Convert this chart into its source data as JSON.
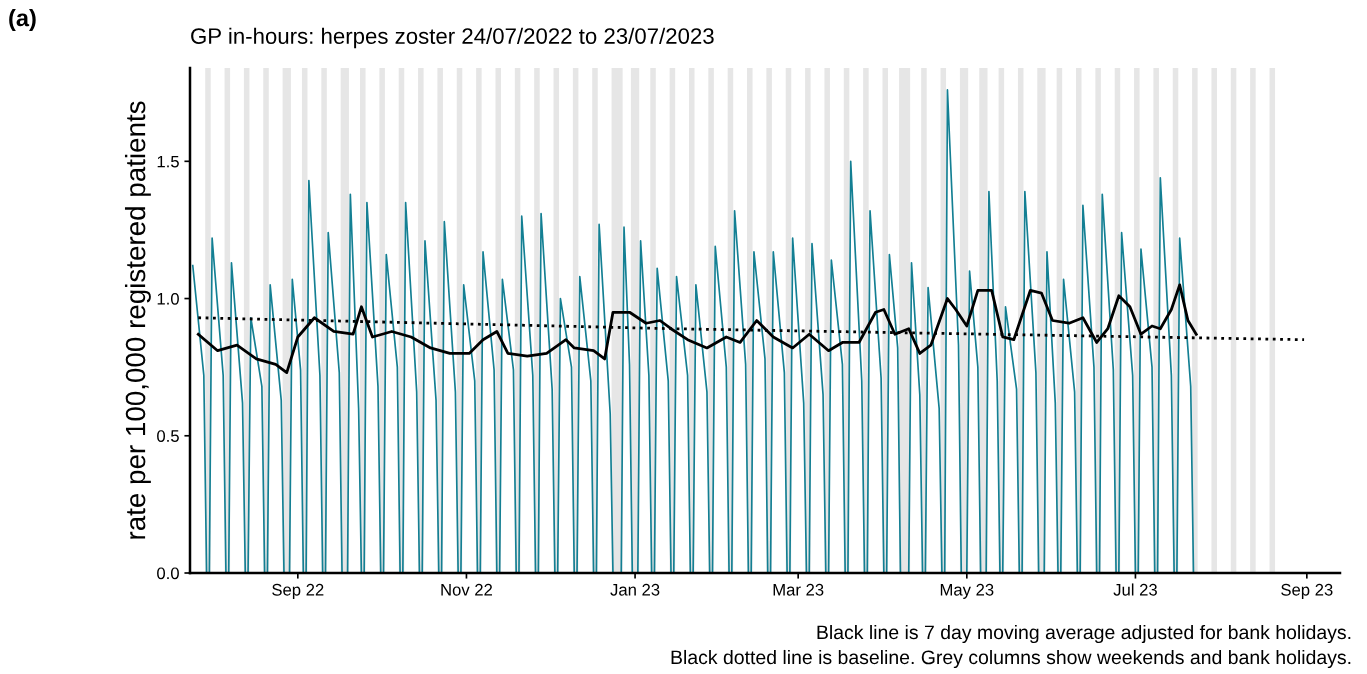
{
  "chart_data": {
    "type": "line",
    "title": "GP in-hours: herpes zoster 24/07/2022 to 23/07/2023",
    "ylabel": "rate per 100,000 registered patients",
    "annotations": [
      "(a)",
      "Black line is 7 day moving average adjusted for bank holidays.",
      "Black dotted line is baseline. Grey columns show weekends and bank holidays."
    ],
    "xlim": [
      "2022-07-24",
      "2023-09-13"
    ],
    "xticks": [
      {
        "value": "2022-09-01",
        "label": "Sep 22"
      },
      {
        "value": "2022-11-01",
        "label": "Nov 22"
      },
      {
        "value": "2023-01-01",
        "label": "Jan 23"
      },
      {
        "value": "2023-03-01",
        "label": "Mar 23"
      },
      {
        "value": "2023-05-01",
        "label": "May 23"
      },
      {
        "value": "2023-07-01",
        "label": "Jul 23"
      },
      {
        "value": "2023-09-01",
        "label": "Sep 23"
      }
    ],
    "ylim": [
      0,
      1.84
    ],
    "yticks": [
      {
        "value": 0,
        "label": "0.0"
      },
      {
        "value": 0.5,
        "label": "0.5"
      },
      {
        "value": 1.0,
        "label": "1.0"
      },
      {
        "value": 1.5,
        "label": "1.5"
      }
    ],
    "grid": false,
    "marker": "none",
    "series": [
      {
        "color": "#137f93",
        "line_style": "solid",
        "x": [
          "2022-07-25",
          "2022-07-29",
          "2022-07-30",
          "2022-07-31",
          "2022-08-01",
          "2022-08-05",
          "2022-08-06",
          "2022-08-07",
          "2022-08-08",
          "2022-08-12",
          "2022-08-13",
          "2022-08-14",
          "2022-08-15",
          "2022-08-19",
          "2022-08-20",
          "2022-08-21",
          "2022-08-22",
          "2022-08-26",
          "2022-08-27",
          "2022-08-28",
          "2022-08-29",
          "2022-08-30",
          "2022-09-02",
          "2022-09-03",
          "2022-09-04",
          "2022-09-05",
          "2022-09-09",
          "2022-09-10",
          "2022-09-11",
          "2022-09-12",
          "2022-09-16",
          "2022-09-17",
          "2022-09-18",
          "2022-09-19",
          "2022-09-20",
          "2022-09-23",
          "2022-09-24",
          "2022-09-25",
          "2022-09-26",
          "2022-09-30",
          "2022-10-01",
          "2022-10-02",
          "2022-10-03",
          "2022-10-07",
          "2022-10-08",
          "2022-10-09",
          "2022-10-10",
          "2022-10-14",
          "2022-10-15",
          "2022-10-16",
          "2022-10-17",
          "2022-10-21",
          "2022-10-22",
          "2022-10-23",
          "2022-10-24",
          "2022-10-28",
          "2022-10-29",
          "2022-10-30",
          "2022-10-31",
          "2022-11-04",
          "2022-11-05",
          "2022-11-06",
          "2022-11-07",
          "2022-11-11",
          "2022-11-12",
          "2022-11-13",
          "2022-11-14",
          "2022-11-18",
          "2022-11-19",
          "2022-11-20",
          "2022-11-21",
          "2022-11-25",
          "2022-11-26",
          "2022-11-27",
          "2022-11-28",
          "2022-12-02",
          "2022-12-03",
          "2022-12-04",
          "2022-12-05",
          "2022-12-09",
          "2022-12-10",
          "2022-12-11",
          "2022-12-12",
          "2022-12-16",
          "2022-12-17",
          "2022-12-18",
          "2022-12-19",
          "2022-12-23",
          "2022-12-24",
          "2022-12-25",
          "2022-12-26",
          "2022-12-27",
          "2022-12-28",
          "2022-12-30",
          "2022-12-31",
          "2023-01-01",
          "2023-01-02",
          "2023-01-03",
          "2023-01-06",
          "2023-01-07",
          "2023-01-08",
          "2023-01-09",
          "2023-01-13",
          "2023-01-14",
          "2023-01-15",
          "2023-01-16",
          "2023-01-20",
          "2023-01-21",
          "2023-01-22",
          "2023-01-23",
          "2023-01-27",
          "2023-01-28",
          "2023-01-29",
          "2023-01-30",
          "2023-02-03",
          "2023-02-04",
          "2023-02-05",
          "2023-02-06",
          "2023-02-10",
          "2023-02-11",
          "2023-02-12",
          "2023-02-13",
          "2023-02-17",
          "2023-02-18",
          "2023-02-19",
          "2023-02-20",
          "2023-02-24",
          "2023-02-25",
          "2023-02-26",
          "2023-02-27",
          "2023-03-03",
          "2023-03-04",
          "2023-03-05",
          "2023-03-06",
          "2023-03-10",
          "2023-03-11",
          "2023-03-12",
          "2023-03-13",
          "2023-03-17",
          "2023-03-18",
          "2023-03-19",
          "2023-03-20",
          "2023-03-24",
          "2023-03-25",
          "2023-03-26",
          "2023-03-27",
          "2023-03-31",
          "2023-04-01",
          "2023-04-02",
          "2023-04-03",
          "2023-04-06",
          "2023-04-07",
          "2023-04-08",
          "2023-04-09",
          "2023-04-10",
          "2023-04-11",
          "2023-04-14",
          "2023-04-15",
          "2023-04-16",
          "2023-04-17",
          "2023-04-21",
          "2023-04-22",
          "2023-04-23",
          "2023-04-24",
          "2023-04-28",
          "2023-04-29",
          "2023-04-30",
          "2023-05-01",
          "2023-05-02",
          "2023-05-05",
          "2023-05-06",
          "2023-05-07",
          "2023-05-08",
          "2023-05-09",
          "2023-05-12",
          "2023-05-13",
          "2023-05-14",
          "2023-05-15",
          "2023-05-19",
          "2023-05-20",
          "2023-05-21",
          "2023-05-22",
          "2023-05-26",
          "2023-05-27",
          "2023-05-28",
          "2023-05-29",
          "2023-05-30",
          "2023-06-02",
          "2023-06-03",
          "2023-06-04",
          "2023-06-05",
          "2023-06-09",
          "2023-06-10",
          "2023-06-11",
          "2023-06-12",
          "2023-06-16",
          "2023-06-17",
          "2023-06-18",
          "2023-06-19",
          "2023-06-23",
          "2023-06-24",
          "2023-06-25",
          "2023-06-26",
          "2023-06-30",
          "2023-07-01",
          "2023-07-02",
          "2023-07-03",
          "2023-07-07",
          "2023-07-08",
          "2023-07-09",
          "2023-07-10",
          "2023-07-14",
          "2023-07-15",
          "2023-07-16",
          "2023-07-17",
          "2023-07-21",
          "2023-07-22",
          "2023-07-23"
        ],
        "values": [
          1.12,
          0.72,
          0,
          0,
          1.22,
          0.72,
          0,
          0,
          1.13,
          0.62,
          0,
          0,
          0.93,
          0.68,
          0,
          0,
          1.05,
          0.63,
          0,
          0,
          0,
          1.07,
          0.74,
          0,
          0,
          1.43,
          0.72,
          0,
          0,
          1.24,
          0.73,
          0,
          0,
          0,
          1.38,
          0.6,
          0,
          0,
          1.35,
          0.68,
          0,
          0,
          1.16,
          0.75,
          0,
          0,
          1.35,
          0.66,
          0,
          0,
          1.21,
          0.63,
          0,
          0,
          1.28,
          0.66,
          0,
          0,
          1.05,
          0.7,
          0,
          0,
          1.17,
          0.74,
          0,
          0,
          1.07,
          0.74,
          0,
          0,
          1.3,
          0.72,
          0,
          0,
          1.31,
          0.67,
          0,
          0,
          1.0,
          0.75,
          0,
          0,
          1.08,
          0.7,
          0,
          0,
          1.27,
          0.58,
          0,
          0,
          0,
          0,
          1.26,
          0.76,
          0,
          0,
          0,
          1.21,
          0.72,
          0,
          0,
          1.11,
          0.7,
          0,
          0,
          1.08,
          0.72,
          0,
          0,
          1.05,
          0.66,
          0,
          0,
          1.19,
          0.75,
          0,
          0,
          1.32,
          0.76,
          0,
          0,
          1.17,
          0.78,
          0,
          0,
          1.17,
          0.73,
          0,
          0,
          1.22,
          0.62,
          0,
          0,
          1.2,
          0.65,
          0,
          0,
          1.14,
          0.76,
          0,
          0,
          1.5,
          0.7,
          0,
          0,
          1.32,
          0.71,
          0,
          0,
          1.16,
          0.82,
          0,
          0,
          0,
          0,
          1.13,
          0.65,
          0,
          0,
          1.04,
          0.6,
          0,
          0,
          1.76,
          0.83,
          0,
          0,
          0,
          1.1,
          0.75,
          0,
          0,
          0,
          1.39,
          0.7,
          0,
          0,
          0.97,
          0.67,
          0,
          0,
          1.39,
          0.73,
          0,
          0,
          0,
          1.17,
          0.62,
          0,
          0,
          1.07,
          0.66,
          0,
          0,
          1.34,
          0.75,
          0,
          0,
          1.38,
          0.74,
          0,
          0,
          1.24,
          0.72,
          0,
          0,
          1.18,
          0.75,
          0,
          0,
          1.44,
          0.72,
          0,
          0,
          1.22,
          0.68,
          0,
          0
        ]
      },
      {
        "color": "#000000",
        "line_style": "solid",
        "x": [
          "2022-07-27",
          "2022-08-03",
          "2022-08-10",
          "2022-08-17",
          "2022-08-24",
          "2022-08-28",
          "2022-09-01",
          "2022-09-07",
          "2022-09-14",
          "2022-09-21",
          "2022-09-24",
          "2022-09-28",
          "2022-10-05",
          "2022-10-12",
          "2022-10-19",
          "2022-10-26",
          "2022-11-02",
          "2022-11-07",
          "2022-11-12",
          "2022-11-16",
          "2022-11-23",
          "2022-11-30",
          "2022-12-07",
          "2022-12-10",
          "2022-12-17",
          "2022-12-21",
          "2022-12-24",
          "2022-12-30",
          "2023-01-05",
          "2023-01-10",
          "2023-01-14",
          "2023-01-20",
          "2023-01-27",
          "2023-02-03",
          "2023-02-08",
          "2023-02-14",
          "2023-02-20",
          "2023-02-27",
          "2023-03-05",
          "2023-03-12",
          "2023-03-17",
          "2023-03-23",
          "2023-03-29",
          "2023-04-01",
          "2023-04-05",
          "2023-04-10",
          "2023-04-14",
          "2023-04-18",
          "2023-04-24",
          "2023-04-27",
          "2023-05-01",
          "2023-05-05",
          "2023-05-10",
          "2023-05-14",
          "2023-05-18",
          "2023-05-24",
          "2023-05-28",
          "2023-06-01",
          "2023-06-07",
          "2023-06-12",
          "2023-06-17",
          "2023-06-21",
          "2023-06-25",
          "2023-06-29",
          "2023-07-03",
          "2023-07-07",
          "2023-07-10",
          "2023-07-14",
          "2023-07-17",
          "2023-07-20",
          "2023-07-23"
        ],
        "values": [
          0.87,
          0.81,
          0.83,
          0.78,
          0.76,
          0.73,
          0.86,
          0.93,
          0.88,
          0.87,
          0.97,
          0.86,
          0.88,
          0.86,
          0.82,
          0.8,
          0.8,
          0.85,
          0.88,
          0.8,
          0.79,
          0.8,
          0.85,
          0.82,
          0.81,
          0.78,
          0.95,
          0.95,
          0.91,
          0.92,
          0.89,
          0.85,
          0.82,
          0.86,
          0.84,
          0.92,
          0.86,
          0.82,
          0.87,
          0.81,
          0.84,
          0.84,
          0.95,
          0.96,
          0.87,
          0.89,
          0.8,
          0.83,
          1.0,
          0.96,
          0.9,
          1.03,
          1.03,
          0.86,
          0.85,
          1.03,
          1.02,
          0.92,
          0.91,
          0.93,
          0.84,
          0.89,
          1.01,
          0.97,
          0.87,
          0.9,
          0.89,
          0.96,
          1.05,
          0.92,
          0.87
        ]
      },
      {
        "color": "#000000",
        "line_style": "dotted",
        "x": [
          "2022-07-27",
          "2023-01-15",
          "2023-08-31"
        ],
        "values": [
          0.93,
          0.89,
          0.85
        ]
      }
    ],
    "bands": [
      {
        "axis": "x",
        "from": "2022-07-29T12:00",
        "to": "2022-07-31T12:00",
        "color": "#e6e6e6"
      },
      {
        "axis": "x",
        "from": "2022-08-05T12:00",
        "to": "2022-08-07T12:00",
        "color": "#e6e6e6"
      },
      {
        "axis": "x",
        "from": "2022-08-12T12:00",
        "to": "2022-08-14T12:00",
        "color": "#e6e6e6"
      },
      {
        "axis": "x",
        "from": "2022-08-19T12:00",
        "to": "2022-08-21T12:00",
        "color": "#e6e6e6"
      },
      {
        "axis": "x",
        "from": "2022-08-26T12:00",
        "to": "2022-08-29T12:00",
        "color": "#e6e6e6"
      },
      {
        "axis": "x",
        "from": "2022-09-02T12:00",
        "to": "2022-09-04T12:00",
        "color": "#e6e6e6"
      },
      {
        "axis": "x",
        "from": "2022-09-09T12:00",
        "to": "2022-09-11T12:00",
        "color": "#e6e6e6"
      },
      {
        "axis": "x",
        "from": "2022-09-16T12:00",
        "to": "2022-09-19T12:00",
        "color": "#e6e6e6"
      },
      {
        "axis": "x",
        "from": "2022-09-23T12:00",
        "to": "2022-09-25T12:00",
        "color": "#e6e6e6"
      },
      {
        "axis": "x",
        "from": "2022-09-30T12:00",
        "to": "2022-10-02T12:00",
        "color": "#e6e6e6"
      },
      {
        "axis": "x",
        "from": "2022-10-07T12:00",
        "to": "2022-10-09T12:00",
        "color": "#e6e6e6"
      },
      {
        "axis": "x",
        "from": "2022-10-14T12:00",
        "to": "2022-10-16T12:00",
        "color": "#e6e6e6"
      },
      {
        "axis": "x",
        "from": "2022-10-21T12:00",
        "to": "2022-10-23T12:00",
        "color": "#e6e6e6"
      },
      {
        "axis": "x",
        "from": "2022-10-28T12:00",
        "to": "2022-10-30T12:00",
        "color": "#e6e6e6"
      },
      {
        "axis": "x",
        "from": "2022-11-04T12:00",
        "to": "2022-11-06T12:00",
        "color": "#e6e6e6"
      },
      {
        "axis": "x",
        "from": "2022-11-11T12:00",
        "to": "2022-11-13T12:00",
        "color": "#e6e6e6"
      },
      {
        "axis": "x",
        "from": "2022-11-18T12:00",
        "to": "2022-11-20T12:00",
        "color": "#e6e6e6"
      },
      {
        "axis": "x",
        "from": "2022-11-25T12:00",
        "to": "2022-11-27T12:00",
        "color": "#e6e6e6"
      },
      {
        "axis": "x",
        "from": "2022-12-02T12:00",
        "to": "2022-12-04T12:00",
        "color": "#e6e6e6"
      },
      {
        "axis": "x",
        "from": "2022-12-09T12:00",
        "to": "2022-12-11T12:00",
        "color": "#e6e6e6"
      },
      {
        "axis": "x",
        "from": "2022-12-16T12:00",
        "to": "2022-12-18T12:00",
        "color": "#e6e6e6"
      },
      {
        "axis": "x",
        "from": "2022-12-23T12:00",
        "to": "2022-12-27T12:00",
        "color": "#e6e6e6"
      },
      {
        "axis": "x",
        "from": "2022-12-30T12:00",
        "to": "2023-01-02T12:00",
        "color": "#e6e6e6"
      },
      {
        "axis": "x",
        "from": "2023-01-06T12:00",
        "to": "2023-01-08T12:00",
        "color": "#e6e6e6"
      },
      {
        "axis": "x",
        "from": "2023-01-13T12:00",
        "to": "2023-01-15T12:00",
        "color": "#e6e6e6"
      },
      {
        "axis": "x",
        "from": "2023-01-20T12:00",
        "to": "2023-01-22T12:00",
        "color": "#e6e6e6"
      },
      {
        "axis": "x",
        "from": "2023-01-27T12:00",
        "to": "2023-01-29T12:00",
        "color": "#e6e6e6"
      },
      {
        "axis": "x",
        "from": "2023-02-03T12:00",
        "to": "2023-02-05T12:00",
        "color": "#e6e6e6"
      },
      {
        "axis": "x",
        "from": "2023-02-10T12:00",
        "to": "2023-02-12T12:00",
        "color": "#e6e6e6"
      },
      {
        "axis": "x",
        "from": "2023-02-17T12:00",
        "to": "2023-02-19T12:00",
        "color": "#e6e6e6"
      },
      {
        "axis": "x",
        "from": "2023-02-24T12:00",
        "to": "2023-02-26T12:00",
        "color": "#e6e6e6"
      },
      {
        "axis": "x",
        "from": "2023-03-03T12:00",
        "to": "2023-03-05T12:00",
        "color": "#e6e6e6"
      },
      {
        "axis": "x",
        "from": "2023-03-10T12:00",
        "to": "2023-03-12T12:00",
        "color": "#e6e6e6"
      },
      {
        "axis": "x",
        "from": "2023-03-17T12:00",
        "to": "2023-03-19T12:00",
        "color": "#e6e6e6"
      },
      {
        "axis": "x",
        "from": "2023-03-24T12:00",
        "to": "2023-03-26T12:00",
        "color": "#e6e6e6"
      },
      {
        "axis": "x",
        "from": "2023-03-31T12:00",
        "to": "2023-04-02T12:00",
        "color": "#e6e6e6"
      },
      {
        "axis": "x",
        "from": "2023-04-06T12:00",
        "to": "2023-04-10T12:00",
        "color": "#e6e6e6"
      },
      {
        "axis": "x",
        "from": "2023-04-14T12:00",
        "to": "2023-04-16T12:00",
        "color": "#e6e6e6"
      },
      {
        "axis": "x",
        "from": "2023-04-21T12:00",
        "to": "2023-04-23T12:00",
        "color": "#e6e6e6"
      },
      {
        "axis": "x",
        "from": "2023-04-28T12:00",
        "to": "2023-05-01T12:00",
        "color": "#e6e6e6"
      },
      {
        "axis": "x",
        "from": "2023-05-05T12:00",
        "to": "2023-05-08T12:00",
        "color": "#e6e6e6"
      },
      {
        "axis": "x",
        "from": "2023-05-12T12:00",
        "to": "2023-05-14T12:00",
        "color": "#e6e6e6"
      },
      {
        "axis": "x",
        "from": "2023-05-19T12:00",
        "to": "2023-05-21T12:00",
        "color": "#e6e6e6"
      },
      {
        "axis": "x",
        "from": "2023-05-26T12:00",
        "to": "2023-05-29T12:00",
        "color": "#e6e6e6"
      },
      {
        "axis": "x",
        "from": "2023-06-02T12:00",
        "to": "2023-06-04T12:00",
        "color": "#e6e6e6"
      },
      {
        "axis": "x",
        "from": "2023-06-09T12:00",
        "to": "2023-06-11T12:00",
        "color": "#e6e6e6"
      },
      {
        "axis": "x",
        "from": "2023-06-16T12:00",
        "to": "2023-06-18T12:00",
        "color": "#e6e6e6"
      },
      {
        "axis": "x",
        "from": "2023-06-23T12:00",
        "to": "2023-06-25T12:00",
        "color": "#e6e6e6"
      },
      {
        "axis": "x",
        "from": "2023-06-30T12:00",
        "to": "2023-07-02T12:00",
        "color": "#e6e6e6"
      },
      {
        "axis": "x",
        "from": "2023-07-07T12:00",
        "to": "2023-07-09T12:00",
        "color": "#e6e6e6"
      },
      {
        "axis": "x",
        "from": "2023-07-14T12:00",
        "to": "2023-07-16T12:00",
        "color": "#e6e6e6"
      },
      {
        "axis": "x",
        "from": "2023-07-21T12:00",
        "to": "2023-07-23T12:00",
        "color": "#e6e6e6"
      },
      {
        "axis": "x",
        "from": "2023-07-28T12:00",
        "to": "2023-07-30T12:00",
        "color": "#e6e6e6"
      },
      {
        "axis": "x",
        "from": "2023-08-04T12:00",
        "to": "2023-08-06T12:00",
        "color": "#e6e6e6"
      },
      {
        "axis": "x",
        "from": "2023-08-11T12:00",
        "to": "2023-08-13T12:00",
        "color": "#e6e6e6"
      },
      {
        "axis": "x",
        "from": "2023-08-18T12:00",
        "to": "2023-08-20T12:00",
        "color": "#e6e6e6"
      }
    ]
  }
}
